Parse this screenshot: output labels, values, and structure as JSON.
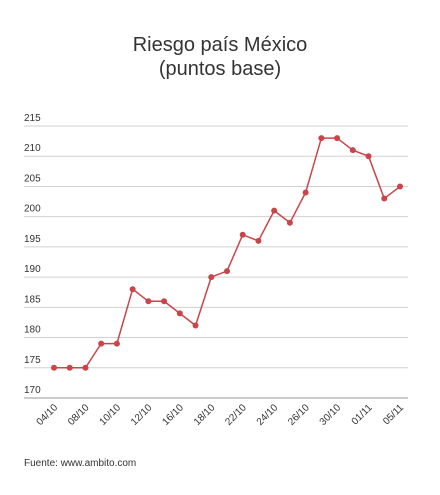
{
  "chart_data": {
    "type": "line",
    "title": "Riesgo país México",
    "subtitle": "(puntos base)",
    "xlabel": "",
    "ylabel": "",
    "ylim": [
      170,
      215
    ],
    "yticks": [
      170,
      175,
      180,
      185,
      190,
      195,
      200,
      205,
      210,
      215
    ],
    "grid": true,
    "x_tick_labels": [
      "04/10",
      "08/10",
      "10/10",
      "12/10",
      "16/10",
      "18/10",
      "22/10",
      "24/10",
      "26/10",
      "30/10",
      "01/11",
      "05/11"
    ],
    "series": [
      {
        "values": [
          175,
          175,
          175,
          179,
          179,
          188,
          186,
          186,
          184,
          182,
          190,
          191,
          197,
          196,
          201,
          199,
          204,
          213,
          213,
          211,
          210,
          203,
          205
        ]
      }
    ],
    "line_color": "#c9454a"
  },
  "source": "Fuente: www.ambito.com"
}
